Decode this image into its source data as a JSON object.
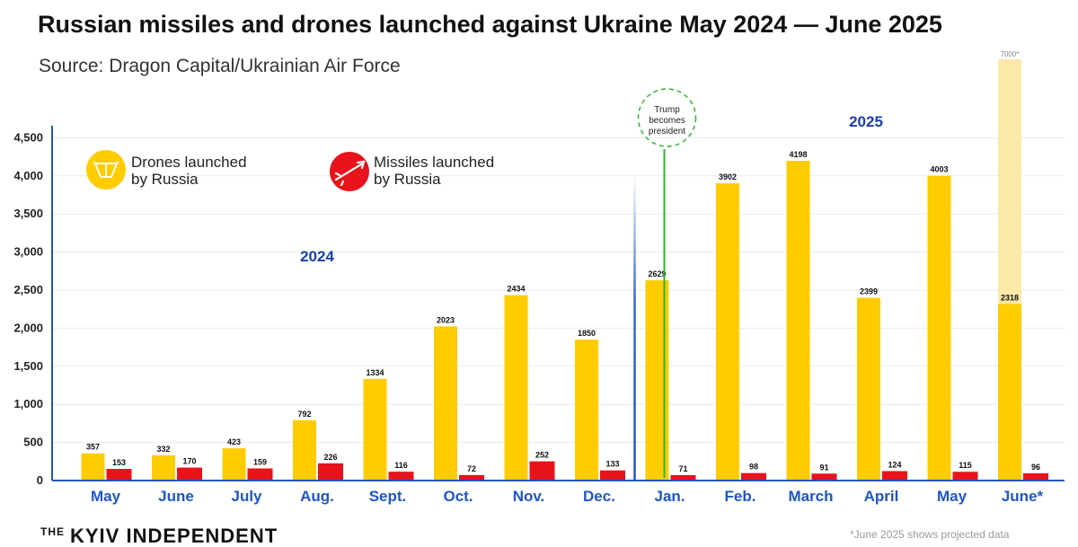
{
  "title": "Russian missiles and drones launched against Ukraine May 2024 — June 2025",
  "subtitle": "Source: Dragon Capital/Ukrainian Air Force",
  "footer": {
    "brand_prefix": "THE",
    "brand": "KYIV INDEPENDENT",
    "note": "*June 2025 shows projected data"
  },
  "colors": {
    "drones": "#FFCC00",
    "missiles": "#E8131B",
    "projected": "#FDE9A7",
    "year_label": "#1A3EA8",
    "axis": "#2255C9",
    "trump_line": "#2DB52D"
  },
  "chart_data": {
    "type": "bar",
    "title": "Russian missiles and drones launched against Ukraine May 2024 — June 2025",
    "xlabel": "",
    "ylabel": "",
    "ylim": [
      0,
      4700
    ],
    "yticks": [
      0,
      500,
      1000,
      1500,
      2000,
      2500,
      3000,
      3500,
      4000,
      4500
    ],
    "ytick_labels": [
      "0",
      "500",
      "1,000",
      "1,500",
      "2,000",
      "2,500",
      "3,000",
      "3,500",
      "4,000",
      "4,500"
    ],
    "categories": [
      "May",
      "June",
      "July",
      "Aug.",
      "Sept.",
      "Oct.",
      "Nov.",
      "Dec.",
      "Jan.",
      "Feb.",
      "March",
      "April",
      "May",
      "June*"
    ],
    "series": [
      {
        "name": "Drones launched by Russia",
        "values": [
          357,
          332,
          423,
          792,
          1334,
          2023,
          2434,
          1850,
          2629,
          3902,
          4198,
          2399,
          4003,
          2318
        ]
      },
      {
        "name": "Missiles launched by Russia",
        "values": [
          153,
          170,
          159,
          226,
          116,
          72,
          252,
          133,
          71,
          98,
          91,
          124,
          115,
          96
        ]
      }
    ],
    "projected": {
      "category": "June*",
      "drones_value": 7000,
      "label": "7000*"
    },
    "legend": [
      {
        "label_line1": "Drones launched",
        "label_line2": "by Russia",
        "icon": "drone-icon"
      },
      {
        "label_line1": "Missiles launched",
        "label_line2": "by Russia",
        "icon": "missile-icon"
      }
    ],
    "year_labels": [
      "2024",
      "2025"
    ],
    "annotation": {
      "line1": "Trump",
      "line2": "becomes",
      "line3": "president",
      "category": "Jan."
    }
  }
}
